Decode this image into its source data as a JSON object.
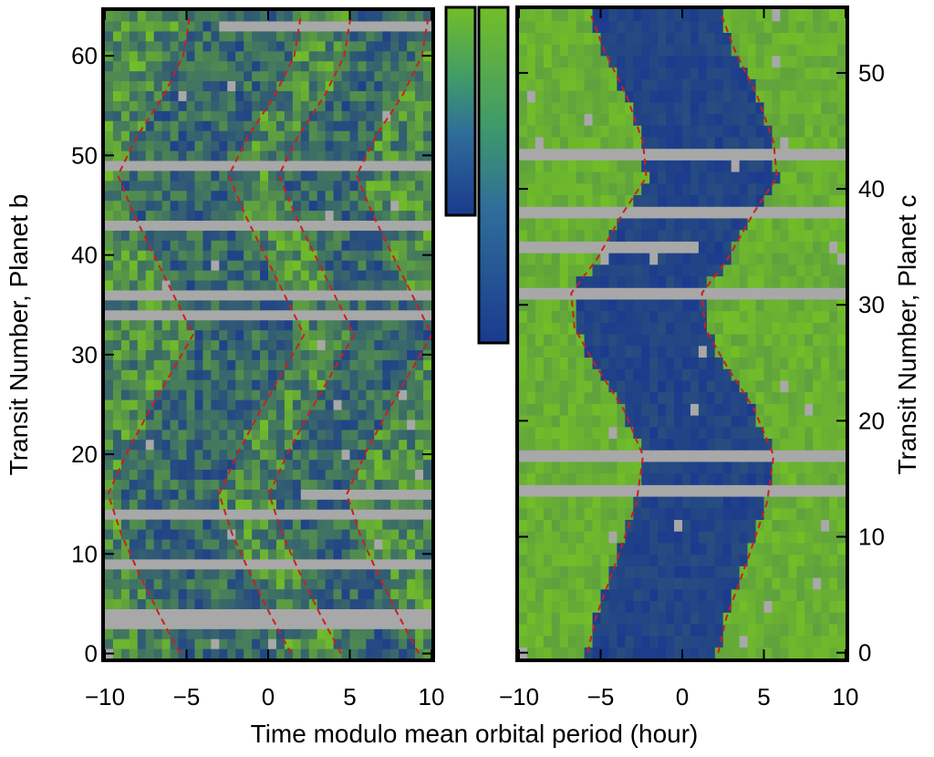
{
  "colors": {
    "transit_dark": "#1b3a8e",
    "transit_mid": "#2f6e9a",
    "out_of_transit_green": "#72be28",
    "noise_green": "#3f9a6a",
    "gap_gray": "#a8a8a8",
    "model_line_red": "#cc1f1f",
    "frame": "#000000"
  },
  "xlabel": "Time modulo mean orbital period (hour)",
  "chart_data": [
    {
      "type": "heatmap",
      "panel": "left",
      "ylabel": "Transit Number, Planet b",
      "xlim": [
        -10,
        10
      ],
      "ylim": [
        0,
        64
      ],
      "x_ticks": [
        "−10",
        "−5",
        "0",
        "5",
        "10"
      ],
      "x_tick_values": [
        -10,
        -5,
        0,
        5,
        10
      ],
      "y_ticks": [
        "0",
        "10",
        "20",
        "30",
        "40",
        "50",
        "60"
      ],
      "y_tick_values": [
        0,
        10,
        20,
        30,
        40,
        50,
        60
      ],
      "missing_transits": [
        3,
        4,
        9,
        14,
        34,
        36,
        43,
        49
      ],
      "partial_missing": [
        {
          "transit": 16,
          "from": 2,
          "to": 10
        },
        {
          "transit": 63,
          "from": -3,
          "to": 10
        }
      ],
      "transit_center_hours": [
        {
          "n": 0,
          "c": -2.0
        },
        {
          "n": 4,
          "c": -3.3
        },
        {
          "n": 8,
          "c": -4.5
        },
        {
          "n": 12,
          "c": -5.6
        },
        {
          "n": 16,
          "c": -6.4
        },
        {
          "n": 20,
          "c": -5.3
        },
        {
          "n": 24,
          "c": -4.0
        },
        {
          "n": 28,
          "c": -2.6
        },
        {
          "n": 32,
          "c": -1.2
        },
        {
          "n": 36,
          "c": -2.4
        },
        {
          "n": 40,
          "c": -3.6
        },
        {
          "n": 44,
          "c": -4.8
        },
        {
          "n": 48,
          "c": -5.8
        },
        {
          "n": 52,
          "c": -4.6
        },
        {
          "n": 56,
          "c": -3.0
        },
        {
          "n": 60,
          "c": -1.8
        },
        {
          "n": 64,
          "c": -1.4
        }
      ],
      "transit_half_width_hours": 3.4
    },
    {
      "type": "heatmap",
      "panel": "right",
      "ylabel": "Transit Number, Planet c",
      "xlim": [
        -10,
        10
      ],
      "ylim": [
        0,
        55
      ],
      "x_ticks": [
        "−10",
        "−5",
        "0",
        "5",
        "10"
      ],
      "x_tick_values": [
        -10,
        -5,
        0,
        5,
        10
      ],
      "y_ticks": [
        "0",
        "10",
        "20",
        "30",
        "40",
        "50"
      ],
      "y_tick_values": [
        0,
        10,
        20,
        30,
        40,
        50
      ],
      "missing_transits": [
        14,
        17,
        31,
        38,
        43
      ],
      "partial_missing": [
        {
          "transit": 35,
          "from": -10,
          "to": 1
        }
      ],
      "transit_center_hours": [
        {
          "n": 0,
          "c": -1.8
        },
        {
          "n": 3,
          "c": -1.3
        },
        {
          "n": 8,
          "c": 0.0
        },
        {
          "n": 13,
          "c": 1.2
        },
        {
          "n": 17,
          "c": 1.6
        },
        {
          "n": 21,
          "c": 0.4
        },
        {
          "n": 25,
          "c": -1.4
        },
        {
          "n": 28,
          "c": -2.6
        },
        {
          "n": 31,
          "c": -2.8
        },
        {
          "n": 34,
          "c": -1.2
        },
        {
          "n": 38,
          "c": 0.4
        },
        {
          "n": 41,
          "c": 1.8
        },
        {
          "n": 44,
          "c": 1.6
        },
        {
          "n": 48,
          "c": 0.6
        },
        {
          "n": 52,
          "c": -0.8
        },
        {
          "n": 55,
          "c": -1.6
        }
      ],
      "transit_half_width_hours": 4.0
    }
  ]
}
